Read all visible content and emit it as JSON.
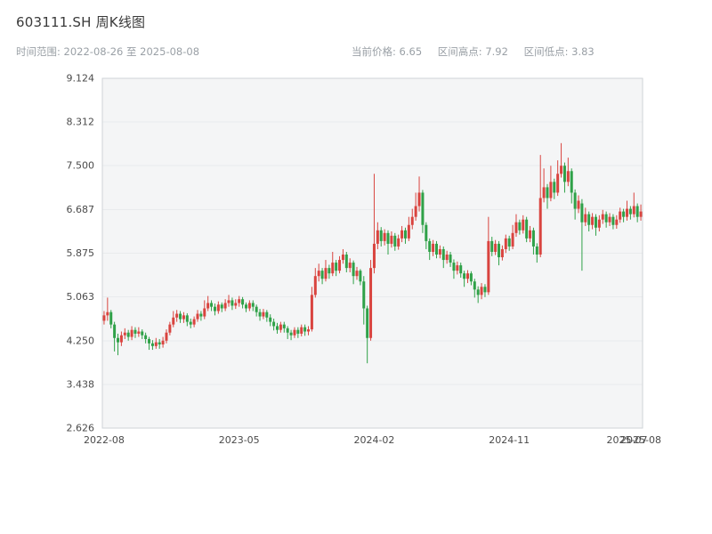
{
  "header": {
    "title": "603111.SH 周K线图",
    "time_range": "时间范围: 2022-08-26 至 2025-08-08",
    "stats": {
      "current": "当前价格: 6.65",
      "high": "区间高点: 7.92",
      "low": "区间低点: 3.83"
    }
  },
  "chart_data": {
    "type": "candlestick",
    "symbol": "603111.SH",
    "period": "weekly",
    "start_date": "2022-08-26",
    "end_date": "2025-08-08",
    "current_price": 6.65,
    "range_high": 7.92,
    "range_low": 3.83,
    "ylim": [
      2.626,
      9.124
    ],
    "grid": true,
    "y_ticks": [
      {
        "value": 2.626,
        "label": "2.626"
      },
      {
        "value": 3.438,
        "label": "3.438"
      },
      {
        "value": 4.25,
        "label": "4.250"
      },
      {
        "value": 5.063,
        "label": "5.063"
      },
      {
        "value": 5.875,
        "label": "5.875"
      },
      {
        "value": 6.687,
        "label": "6.687"
      },
      {
        "value": 7.5,
        "label": "7.500"
      },
      {
        "value": 8.312,
        "label": "8.312"
      },
      {
        "value": 9.124,
        "label": "9.124"
      }
    ],
    "x_ticks": [
      {
        "label": "2022-08",
        "week": 0
      },
      {
        "label": "2023-05",
        "week": 39
      },
      {
        "label": "2024-02",
        "week": 78
      },
      {
        "label": "2024-11",
        "week": 117
      },
      {
        "label": "2025-07",
        "week": 151
      },
      {
        "label": "2025-08",
        "week": 155
      }
    ],
    "colors": {
      "up": "#d9443f",
      "down": "#2fa148",
      "plot_bg": "#f4f5f6",
      "grid": "#e9ebed",
      "spine": "#cfd3d7",
      "text": "#4a4a4a",
      "muted": "#9aa0a6"
    },
    "candles": [
      [
        4.62,
        4.8,
        4.55,
        4.72
      ],
      [
        4.72,
        5.05,
        4.62,
        4.78
      ],
      [
        4.78,
        4.82,
        4.48,
        4.55
      ],
      [
        4.55,
        4.6,
        4.05,
        4.3
      ],
      [
        4.3,
        4.38,
        3.98,
        4.22
      ],
      [
        4.22,
        4.42,
        4.15,
        4.35
      ],
      [
        4.35,
        4.48,
        4.28,
        4.4
      ],
      [
        4.4,
        4.45,
        4.25,
        4.32
      ],
      [
        4.32,
        4.52,
        4.26,
        4.45
      ],
      [
        4.45,
        4.5,
        4.3,
        4.38
      ],
      [
        4.38,
        4.5,
        4.32,
        4.42
      ],
      [
        4.42,
        4.46,
        4.28,
        4.35
      ],
      [
        4.35,
        4.4,
        4.2,
        4.28
      ],
      [
        4.28,
        4.32,
        4.08,
        4.2
      ],
      [
        4.2,
        4.26,
        4.08,
        4.15
      ],
      [
        4.15,
        4.3,
        4.1,
        4.22
      ],
      [
        4.22,
        4.28,
        4.1,
        4.18
      ],
      [
        4.18,
        4.32,
        4.12,
        4.25
      ],
      [
        4.25,
        4.46,
        4.2,
        4.4
      ],
      [
        4.4,
        4.6,
        4.35,
        4.55
      ],
      [
        4.55,
        4.8,
        4.5,
        4.68
      ],
      [
        4.68,
        4.82,
        4.6,
        4.75
      ],
      [
        4.75,
        4.8,
        4.58,
        4.65
      ],
      [
        4.65,
        4.78,
        4.58,
        4.72
      ],
      [
        4.72,
        4.76,
        4.52,
        4.6
      ],
      [
        4.6,
        4.66,
        4.48,
        4.55
      ],
      [
        4.55,
        4.7,
        4.5,
        4.65
      ],
      [
        4.65,
        4.82,
        4.6,
        4.75
      ],
      [
        4.75,
        4.8,
        4.62,
        4.7
      ],
      [
        4.7,
        5.0,
        4.65,
        4.85
      ],
      [
        4.85,
        5.08,
        4.8,
        4.95
      ],
      [
        4.95,
        5.0,
        4.8,
        4.88
      ],
      [
        4.88,
        4.94,
        4.72,
        4.8
      ],
      [
        4.8,
        4.98,
        4.75,
        4.92
      ],
      [
        4.92,
        4.96,
        4.78,
        4.85
      ],
      [
        4.85,
        5.02,
        4.8,
        4.95
      ],
      [
        4.95,
        5.1,
        4.88,
        5.0
      ],
      [
        5.0,
        5.05,
        4.82,
        4.9
      ],
      [
        4.9,
        5.02,
        4.84,
        4.95
      ],
      [
        4.95,
        5.08,
        4.88,
        5.02
      ],
      [
        5.02,
        5.06,
        4.85,
        4.92
      ],
      [
        4.92,
        4.96,
        4.78,
        4.85
      ],
      [
        4.85,
        5.0,
        4.8,
        4.95
      ],
      [
        4.95,
        5.0,
        4.8,
        4.88
      ],
      [
        4.88,
        4.92,
        4.7,
        4.78
      ],
      [
        4.78,
        4.84,
        4.62,
        4.7
      ],
      [
        4.7,
        4.84,
        4.65,
        4.78
      ],
      [
        4.78,
        4.82,
        4.6,
        4.68
      ],
      [
        4.68,
        4.74,
        4.52,
        4.6
      ],
      [
        4.6,
        4.66,
        4.44,
        4.52
      ],
      [
        4.52,
        4.58,
        4.38,
        4.45
      ],
      [
        4.45,
        4.6,
        4.4,
        4.55
      ],
      [
        4.55,
        4.6,
        4.4,
        4.48
      ],
      [
        4.48,
        4.52,
        4.28,
        4.4
      ],
      [
        4.4,
        4.45,
        4.26,
        4.35
      ],
      [
        4.35,
        4.5,
        4.3,
        4.45
      ],
      [
        4.45,
        4.5,
        4.3,
        4.38
      ],
      [
        4.38,
        4.55,
        4.33,
        4.5
      ],
      [
        4.5,
        4.55,
        4.34,
        4.42
      ],
      [
        4.42,
        4.52,
        4.35,
        4.46
      ],
      [
        4.46,
        5.25,
        4.42,
        5.1
      ],
      [
        5.1,
        5.6,
        5.05,
        5.45
      ],
      [
        5.45,
        5.68,
        5.35,
        5.55
      ],
      [
        5.55,
        5.6,
        5.3,
        5.4
      ],
      [
        5.4,
        5.75,
        5.35,
        5.6
      ],
      [
        5.6,
        5.66,
        5.4,
        5.5
      ],
      [
        5.5,
        5.9,
        5.45,
        5.7
      ],
      [
        5.7,
        5.75,
        5.45,
        5.55
      ],
      [
        5.55,
        5.82,
        5.5,
        5.75
      ],
      [
        5.75,
        5.95,
        5.68,
        5.85
      ],
      [
        5.85,
        5.9,
        5.52,
        5.6
      ],
      [
        5.6,
        5.78,
        5.52,
        5.7
      ],
      [
        5.7,
        5.74,
        5.3,
        5.45
      ],
      [
        5.45,
        5.62,
        5.38,
        5.55
      ],
      [
        5.55,
        5.58,
        5.28,
        5.35
      ],
      [
        5.35,
        5.45,
        4.55,
        4.85
      ],
      [
        4.85,
        4.9,
        3.83,
        4.3
      ],
      [
        4.3,
        5.75,
        4.25,
        5.6
      ],
      [
        5.6,
        7.35,
        5.5,
        6.05
      ],
      [
        6.05,
        6.45,
        5.95,
        6.3
      ],
      [
        6.3,
        6.36,
        6.0,
        6.1
      ],
      [
        6.1,
        6.32,
        6.02,
        6.25
      ],
      [
        6.25,
        6.3,
        5.85,
        6.05
      ],
      [
        6.05,
        6.28,
        5.98,
        6.2
      ],
      [
        6.2,
        6.25,
        5.92,
        6.0
      ],
      [
        6.0,
        6.22,
        5.94,
        6.15
      ],
      [
        6.15,
        6.38,
        6.08,
        6.3
      ],
      [
        6.3,
        6.35,
        6.05,
        6.15
      ],
      [
        6.15,
        6.55,
        6.1,
        6.4
      ],
      [
        6.4,
        6.7,
        6.32,
        6.55
      ],
      [
        6.55,
        7.0,
        6.48,
        6.75
      ],
      [
        6.75,
        7.3,
        6.65,
        7.0
      ],
      [
        7.0,
        7.05,
        6.25,
        6.4
      ],
      [
        6.4,
        6.45,
        5.95,
        6.1
      ],
      [
        6.1,
        6.15,
        5.75,
        5.9
      ],
      [
        5.9,
        6.12,
        5.82,
        6.05
      ],
      [
        6.05,
        6.1,
        5.78,
        5.85
      ],
      [
        5.85,
        6.02,
        5.78,
        5.95
      ],
      [
        5.95,
        6.0,
        5.6,
        5.75
      ],
      [
        5.75,
        5.92,
        5.68,
        5.85
      ],
      [
        5.85,
        5.9,
        5.62,
        5.7
      ],
      [
        5.7,
        5.76,
        5.4,
        5.55
      ],
      [
        5.55,
        5.72,
        5.48,
        5.65
      ],
      [
        5.65,
        5.7,
        5.42,
        5.5
      ],
      [
        5.5,
        5.55,
        5.25,
        5.4
      ],
      [
        5.4,
        5.56,
        5.32,
        5.5
      ],
      [
        5.5,
        5.54,
        5.28,
        5.35
      ],
      [
        5.35,
        5.4,
        5.05,
        5.2
      ],
      [
        5.2,
        5.26,
        4.95,
        5.1
      ],
      [
        5.1,
        5.32,
        5.02,
        5.25
      ],
      [
        5.25,
        5.3,
        5.06,
        5.15
      ],
      [
        5.15,
        6.55,
        5.1,
        6.1
      ],
      [
        6.1,
        6.18,
        5.82,
        5.9
      ],
      [
        5.9,
        6.12,
        5.84,
        6.05
      ],
      [
        6.05,
        6.1,
        5.65,
        5.8
      ],
      [
        5.8,
        6.02,
        5.74,
        5.95
      ],
      [
        5.95,
        6.22,
        5.88,
        6.15
      ],
      [
        6.15,
        6.2,
        5.92,
        6.0
      ],
      [
        6.0,
        6.4,
        5.95,
        6.25
      ],
      [
        6.25,
        6.6,
        6.18,
        6.45
      ],
      [
        6.45,
        6.5,
        6.22,
        6.3
      ],
      [
        6.3,
        6.58,
        6.24,
        6.5
      ],
      [
        6.5,
        6.55,
        6.08,
        6.15
      ],
      [
        6.15,
        6.38,
        6.08,
        6.3
      ],
      [
        6.3,
        6.35,
        5.85,
        6.0
      ],
      [
        6.0,
        6.06,
        5.7,
        5.85
      ],
      [
        5.85,
        7.7,
        5.8,
        6.9
      ],
      [
        6.9,
        7.45,
        6.82,
        7.1
      ],
      [
        7.1,
        7.16,
        6.7,
        6.9
      ],
      [
        6.9,
        7.5,
        6.84,
        7.2
      ],
      [
        7.2,
        7.26,
        6.88,
        7.0
      ],
      [
        7.0,
        7.6,
        6.94,
        7.35
      ],
      [
        7.35,
        7.92,
        7.28,
        7.5
      ],
      [
        7.5,
        7.56,
        7.0,
        7.2
      ],
      [
        7.2,
        7.65,
        7.12,
        7.4
      ],
      [
        7.4,
        7.45,
        6.8,
        7.0
      ],
      [
        7.0,
        7.06,
        6.5,
        6.7
      ],
      [
        6.7,
        6.95,
        6.62,
        6.85
      ],
      [
        6.8,
        6.88,
        5.55,
        6.45
      ],
      [
        6.45,
        6.72,
        6.38,
        6.6
      ],
      [
        6.6,
        6.65,
        6.28,
        6.4
      ],
      [
        6.4,
        6.62,
        6.32,
        6.55
      ],
      [
        6.55,
        6.6,
        6.2,
        6.35
      ],
      [
        6.35,
        6.58,
        6.28,
        6.5
      ],
      [
        6.5,
        6.68,
        6.42,
        6.6
      ],
      [
        6.6,
        6.65,
        6.35,
        6.45
      ],
      [
        6.45,
        6.62,
        6.38,
        6.55
      ],
      [
        6.55,
        6.6,
        6.32,
        6.4
      ],
      [
        6.4,
        6.58,
        6.33,
        6.5
      ],
      [
        6.5,
        6.72,
        6.44,
        6.65
      ],
      [
        6.65,
        6.7,
        6.45,
        6.55
      ],
      [
        6.55,
        6.85,
        6.48,
        6.7
      ],
      [
        6.7,
        6.75,
        6.5,
        6.6
      ],
      [
        6.6,
        7.0,
        6.54,
        6.75
      ],
      [
        6.75,
        6.8,
        6.45,
        6.55
      ],
      [
        6.55,
        6.78,
        6.48,
        6.65
      ]
    ]
  }
}
